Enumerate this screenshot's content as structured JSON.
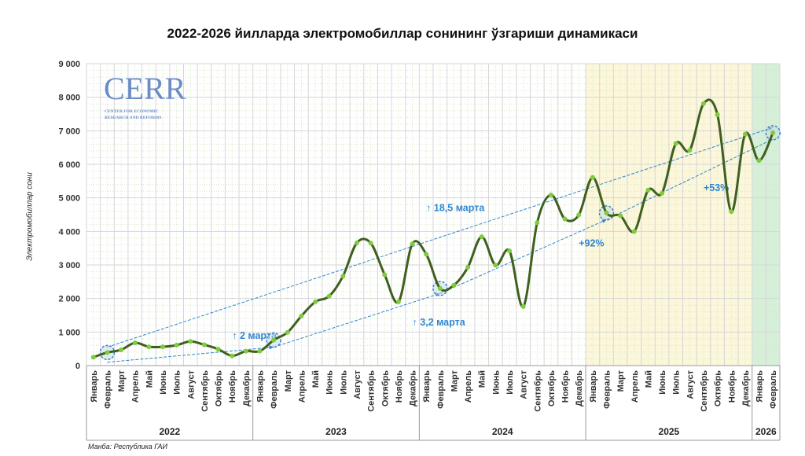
{
  "chart_data": {
    "type": "line",
    "title": "2022-2026 йилларда электромобиллар сонининг ўзгариши динамикаси",
    "ylabel": "Электромобиллар сони",
    "xlabel": "",
    "ylim": [
      0,
      9000
    ],
    "yticks": [
      0,
      1000,
      2000,
      3000,
      4000,
      5000,
      6000,
      7000,
      8000,
      9000
    ],
    "ytick_labels": [
      "0",
      "1 000",
      "2 000",
      "3 000",
      "4 000",
      "5 000",
      "6 000",
      "7 000",
      "8 000",
      "9 000"
    ],
    "grid": true,
    "smooth": true,
    "line_color": "#3f5f1f",
    "marker_color": "#7ccc3c",
    "months": [
      "Январь",
      "Февраль",
      "Март",
      "Апрель",
      "Май",
      "Июнь",
      "Июль",
      "Август",
      "Сентябрь",
      "Октябрь",
      "Ноябрь",
      "Декабрь"
    ],
    "years": [
      {
        "label": "2022",
        "months": 12
      },
      {
        "label": "2023",
        "months": 12
      },
      {
        "label": "2024",
        "months": 12
      },
      {
        "label": "2025",
        "months": 12,
        "highlight": "#fcf6da"
      },
      {
        "label": "2026",
        "months": 2,
        "highlight": "#d6efd9"
      }
    ],
    "values": [
      250,
      390,
      470,
      680,
      560,
      560,
      610,
      720,
      620,
      490,
      290,
      430,
      430,
      760,
      990,
      1480,
      1900,
      2070,
      2670,
      3660,
      3650,
      2710,
      1900,
      3630,
      3320,
      2300,
      2400,
      2930,
      3840,
      2990,
      3420,
      1760,
      4260,
      5090,
      4370,
      4490,
      5610,
      4550,
      4470,
      4000,
      5230,
      5140,
      6620,
      6420,
      7810,
      7480,
      4590,
      6900,
      6110,
      6940
    ],
    "highlight_points": [
      "2022-02",
      "2023-02",
      "2024-02",
      "2025-02",
      "2026-02"
    ],
    "trend_color": "#2f86d0",
    "trend_lines": [
      {
        "from": [
          "2022-02",
          550
        ],
        "to": [
          "2026-02",
          7100
        ],
        "label": "↑ 18,5 марта",
        "label_at": [
          "2024-01",
          4600
        ]
      },
      {
        "from": [
          "2022-02",
          100
        ],
        "to": [
          "2023-02",
          550
        ],
        "label": "↑ 2 марта",
        "label_at": [
          "2022-11",
          800
        ]
      },
      {
        "from": [
          "2023-02",
          550
        ],
        "to": [
          "2024-02",
          2150
        ],
        "label": "↑ 3,2 марта",
        "label_at": [
          "2023-12",
          1200
        ]
      },
      {
        "from": [
          "2024-02",
          2150
        ],
        "to": [
          "2025-02",
          4350
        ],
        "label": "+92%",
        "label_at": [
          "2024-12",
          3550
        ]
      },
      {
        "from": [
          "2025-02",
          4350
        ],
        "to": [
          "2026-02",
          6750
        ],
        "label": "+53%",
        "label_at": [
          "2025-09",
          5200
        ]
      }
    ]
  },
  "logo": {
    "name": "CERR",
    "subtitle1": "CENTER FOR ECONOMIC",
    "subtitle2": "RESEARCH AND REFORMS",
    "color": "#6b8cc6"
  },
  "source": "Манба: Республика ГАИ"
}
